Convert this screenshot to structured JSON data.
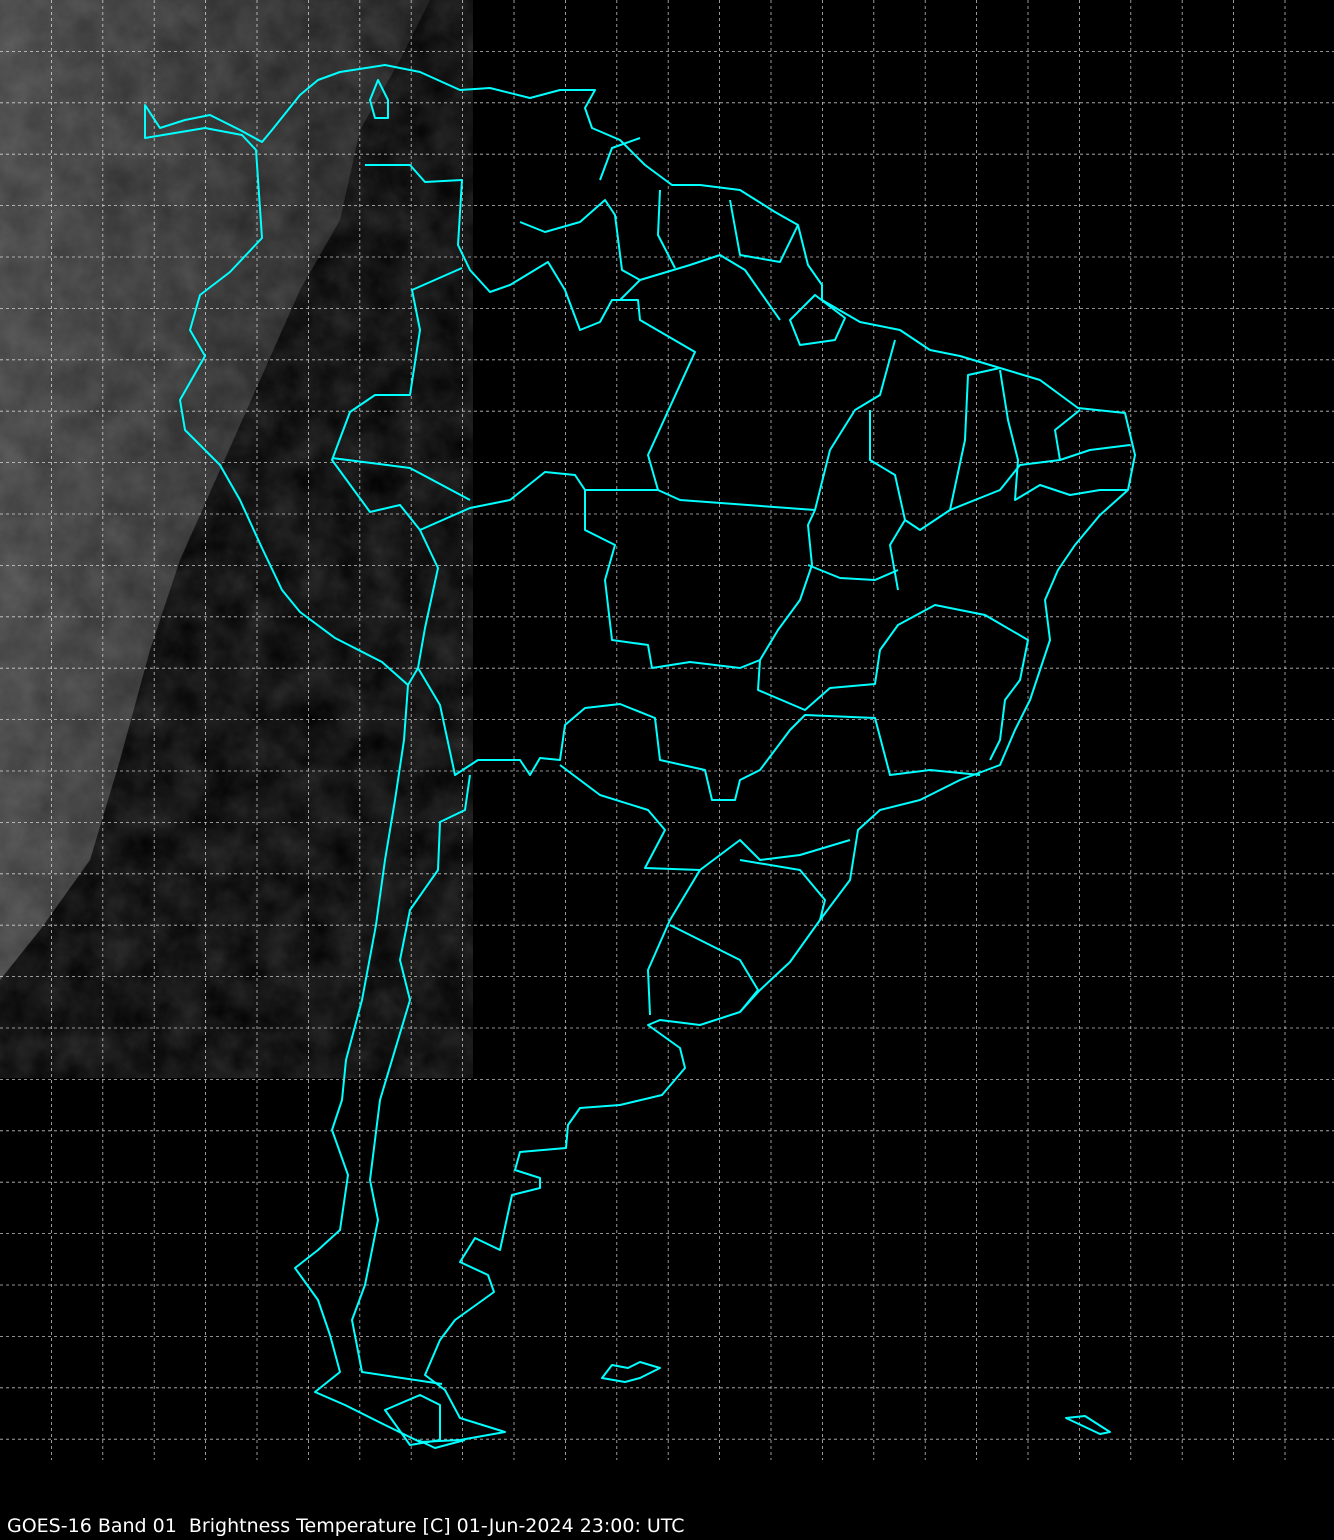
{
  "caption": "GOES-16 Band 01  Brightness Temperature [C] 01-Jun-2024 23:00: UTC",
  "map": {
    "region": "South America",
    "satellite": "GOES-16",
    "band": "01",
    "gridlines": true,
    "colors": {
      "background": "#000000",
      "boundaries": "#00ffff",
      "gridlines": "#ffffff",
      "clouds": "#5a5a5a"
    }
  }
}
